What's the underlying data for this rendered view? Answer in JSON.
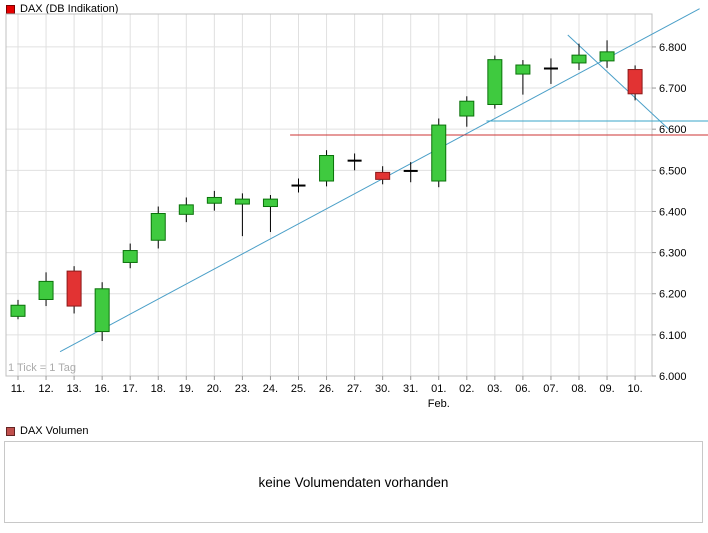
{
  "price_panel": {
    "legend_label": "DAX (DB Indikation)",
    "legend_color": "#e60000",
    "legend_border": "#7a0000",
    "watermark": "1 Tick = 1 Tag"
  },
  "volume_panel": {
    "legend_label": "DAX Volumen",
    "legend_color": "#c0504d",
    "legend_border": "#632423",
    "message": "keine Volumendaten vorhanden"
  },
  "chart_data": {
    "type": "candlestick",
    "title": "DAX (DB Indikation)",
    "x_labels": [
      "11.",
      "12.",
      "13.",
      "16.",
      "17.",
      "18.",
      "19.",
      "20.",
      "23.",
      "24.",
      "25.",
      "26.",
      "27.",
      "30.",
      "31.",
      "01.",
      "02.",
      "03.",
      "06.",
      "07.",
      "08.",
      "09.",
      "10."
    ],
    "month_label": {
      "text": "Feb.",
      "index": 15
    },
    "y_ticks": [
      {
        "value": 6800,
        "label": "6.800"
      },
      {
        "value": 6700,
        "label": "6.700"
      },
      {
        "value": 6600,
        "label": "6.600"
      },
      {
        "value": 6500,
        "label": "6.500"
      },
      {
        "value": 6400,
        "label": "6.400"
      },
      {
        "value": 6300,
        "label": "6.300"
      },
      {
        "value": 6200,
        "label": "6.200"
      },
      {
        "value": 6100,
        "label": "6.100"
      },
      {
        "value": 6000,
        "label": "6.000"
      }
    ],
    "ylim": [
      6000,
      6880
    ],
    "candles": [
      {
        "date": "11.",
        "open": 6145,
        "high": 6185,
        "low": 6138,
        "close": 6172
      },
      {
        "date": "12.",
        "open": 6186,
        "high": 6252,
        "low": 6170,
        "close": 6230
      },
      {
        "date": "13.",
        "open": 6255,
        "high": 6267,
        "low": 6152,
        "close": 6170
      },
      {
        "date": "16.",
        "open": 6108,
        "high": 6228,
        "low": 6085,
        "close": 6212
      },
      {
        "date": "17.",
        "open": 6276,
        "high": 6322,
        "low": 6262,
        "close": 6305
      },
      {
        "date": "18.",
        "open": 6330,
        "high": 6412,
        "low": 6310,
        "close": 6395
      },
      {
        "date": "19.",
        "open": 6393,
        "high": 6434,
        "low": 6374,
        "close": 6416
      },
      {
        "date": "20.",
        "open": 6420,
        "high": 6450,
        "low": 6402,
        "close": 6434
      },
      {
        "date": "23.",
        "open": 6418,
        "high": 6444,
        "low": 6340,
        "close": 6430
      },
      {
        "date": "24.",
        "open": 6412,
        "high": 6440,
        "low": 6350,
        "close": 6430
      },
      {
        "date": "25.",
        "open": 6462,
        "high": 6480,
        "low": 6446,
        "close": 6464
      },
      {
        "date": "26.",
        "open": 6474,
        "high": 6549,
        "low": 6461,
        "close": 6536
      },
      {
        "date": "27.",
        "open": 6522,
        "high": 6541,
        "low": 6500,
        "close": 6525
      },
      {
        "date": "30.",
        "open": 6495,
        "high": 6510,
        "low": 6466,
        "close": 6478
      },
      {
        "date": "31.",
        "open": 6497,
        "high": 6520,
        "low": 6471,
        "close": 6500
      },
      {
        "date": "01.",
        "open": 6474,
        "high": 6626,
        "low": 6459,
        "close": 6610
      },
      {
        "date": "02.",
        "open": 6632,
        "high": 6680,
        "low": 6606,
        "close": 6668
      },
      {
        "date": "03.",
        "open": 6660,
        "high": 6779,
        "low": 6650,
        "close": 6769
      },
      {
        "date": "06.",
        "open": 6734,
        "high": 6768,
        "low": 6684,
        "close": 6756
      },
      {
        "date": "07.",
        "open": 6744,
        "high": 6772,
        "low": 6710,
        "close": 6751
      },
      {
        "date": "08.",
        "open": 6761,
        "high": 6808,
        "low": 6744,
        "close": 6780
      },
      {
        "date": "09.",
        "open": 6766,
        "high": 6816,
        "low": 6749,
        "close": 6788
      },
      {
        "date": "10.",
        "open": 6745,
        "high": 6755,
        "low": 6670,
        "close": 6686
      }
    ],
    "trendlines": [
      {
        "kind": "segment",
        "color": "#4a9fc8",
        "from": {
          "index": 1.5,
          "value": 6059
        },
        "to": {
          "index": 24.3,
          "value": 6893
        }
      },
      {
        "kind": "segment",
        "color": "#4a9fc8",
        "from": {
          "index": 19.6,
          "value": 6829
        },
        "to": {
          "index": 23.2,
          "value": 6600
        }
      },
      {
        "kind": "hline",
        "color": "#3aa6c9",
        "value": 6620,
        "from_index": 16.7,
        "to_index": 24.6
      },
      {
        "kind": "hline",
        "color": "#cc3333",
        "value": 6586,
        "from_index": 9.7,
        "to_index": 24.6
      }
    ],
    "legend_position": "top-left",
    "grid": true,
    "colors": {
      "up_fill": "#3fca3f",
      "up_stroke": "#0a720a",
      "down_fill": "#e23333",
      "down_stroke": "#8b1a1a",
      "doji": "#000000",
      "grid": "#e0e0e0",
      "frame": "#c0c0c0",
      "tick": "#999999",
      "watermark": "#ababab"
    }
  }
}
